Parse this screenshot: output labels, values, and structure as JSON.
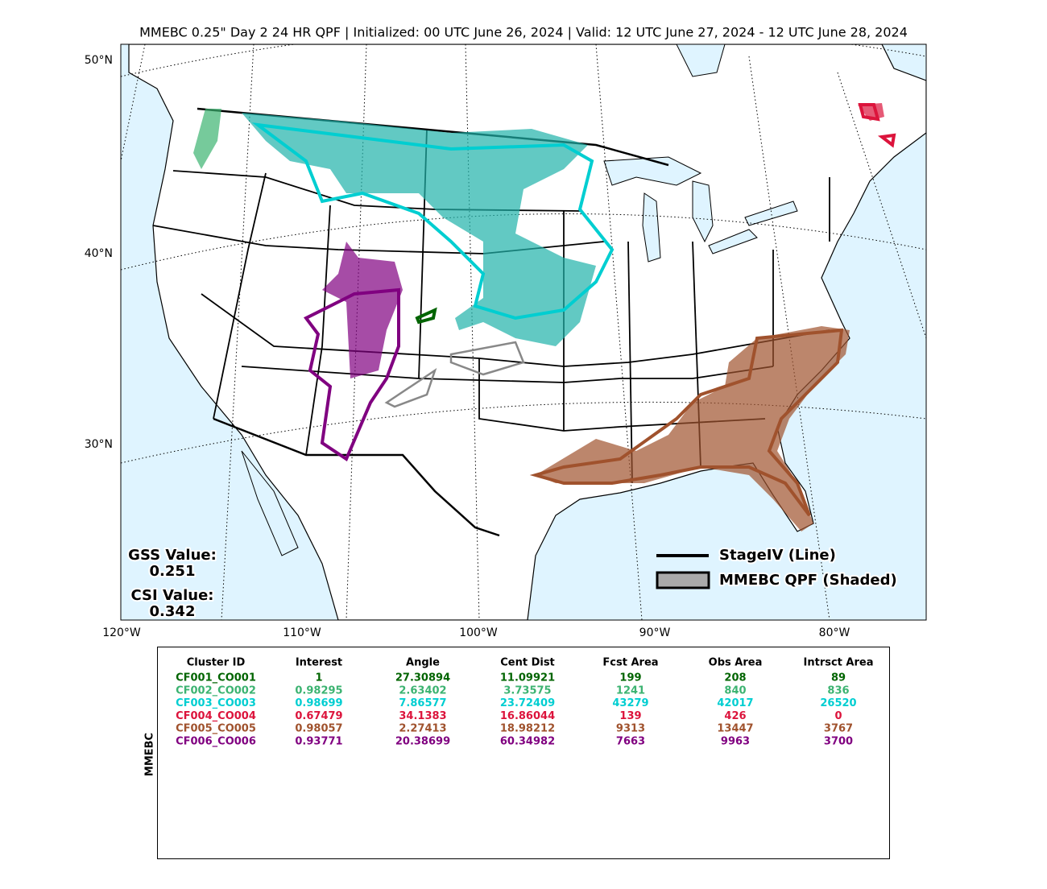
{
  "title": "MMEBC 0.25\" Day 2 24 HR QPF | Initialized: 00 UTC June 26, 2024 | Valid: 12 UTC June 27, 2024 - 12 UTC June 28, 2024",
  "lat_labels": [
    "50°N",
    "40°N",
    "30°N"
  ],
  "lon_labels": [
    "120°W",
    "110°W",
    "100°W",
    "90°W",
    "80°W"
  ],
  "scores": [
    {
      "label": "GSS Value:",
      "value": 0.251
    },
    {
      "label": "CSI Value:",
      "value": 0.342
    }
  ],
  "legend": [
    "StageIV (Line)",
    "MMEBC QPF (Shaded)"
  ],
  "table": {
    "side_label": "MMEBC",
    "columns": [
      "Cluster ID",
      "Interest",
      "Angle",
      "Cent Dist",
      "Fcst Area",
      "Obs Area",
      "Intrsct Area"
    ],
    "rows": [
      {
        "color": "#006400",
        "cells": [
          "CF001_CO001",
          1,
          27.30894,
          11.09921,
          199,
          208,
          89
        ]
      },
      {
        "color": "#3cb371",
        "cells": [
          "CF002_CO002",
          0.98295,
          2.63402,
          3.73575,
          1241,
          840,
          836
        ]
      },
      {
        "color": "#00ced1",
        "cells": [
          "CF003_CO003",
          0.98699,
          7.86577,
          23.72409,
          43279,
          42017,
          26520
        ]
      },
      {
        "color": "#dc143c",
        "cells": [
          "CF004_CO004",
          0.67479,
          34.1383,
          16.86044,
          139,
          426,
          0
        ]
      },
      {
        "color": "#a0522d",
        "cells": [
          "CF005_CO005",
          0.98057,
          2.27413,
          18.98212,
          9313,
          13447,
          3767
        ]
      },
      {
        "color": "#800080",
        "cells": [
          "CF006_CO006",
          0.93771,
          20.38699,
          60.34982,
          7663,
          9963,
          3700
        ]
      }
    ]
  }
}
